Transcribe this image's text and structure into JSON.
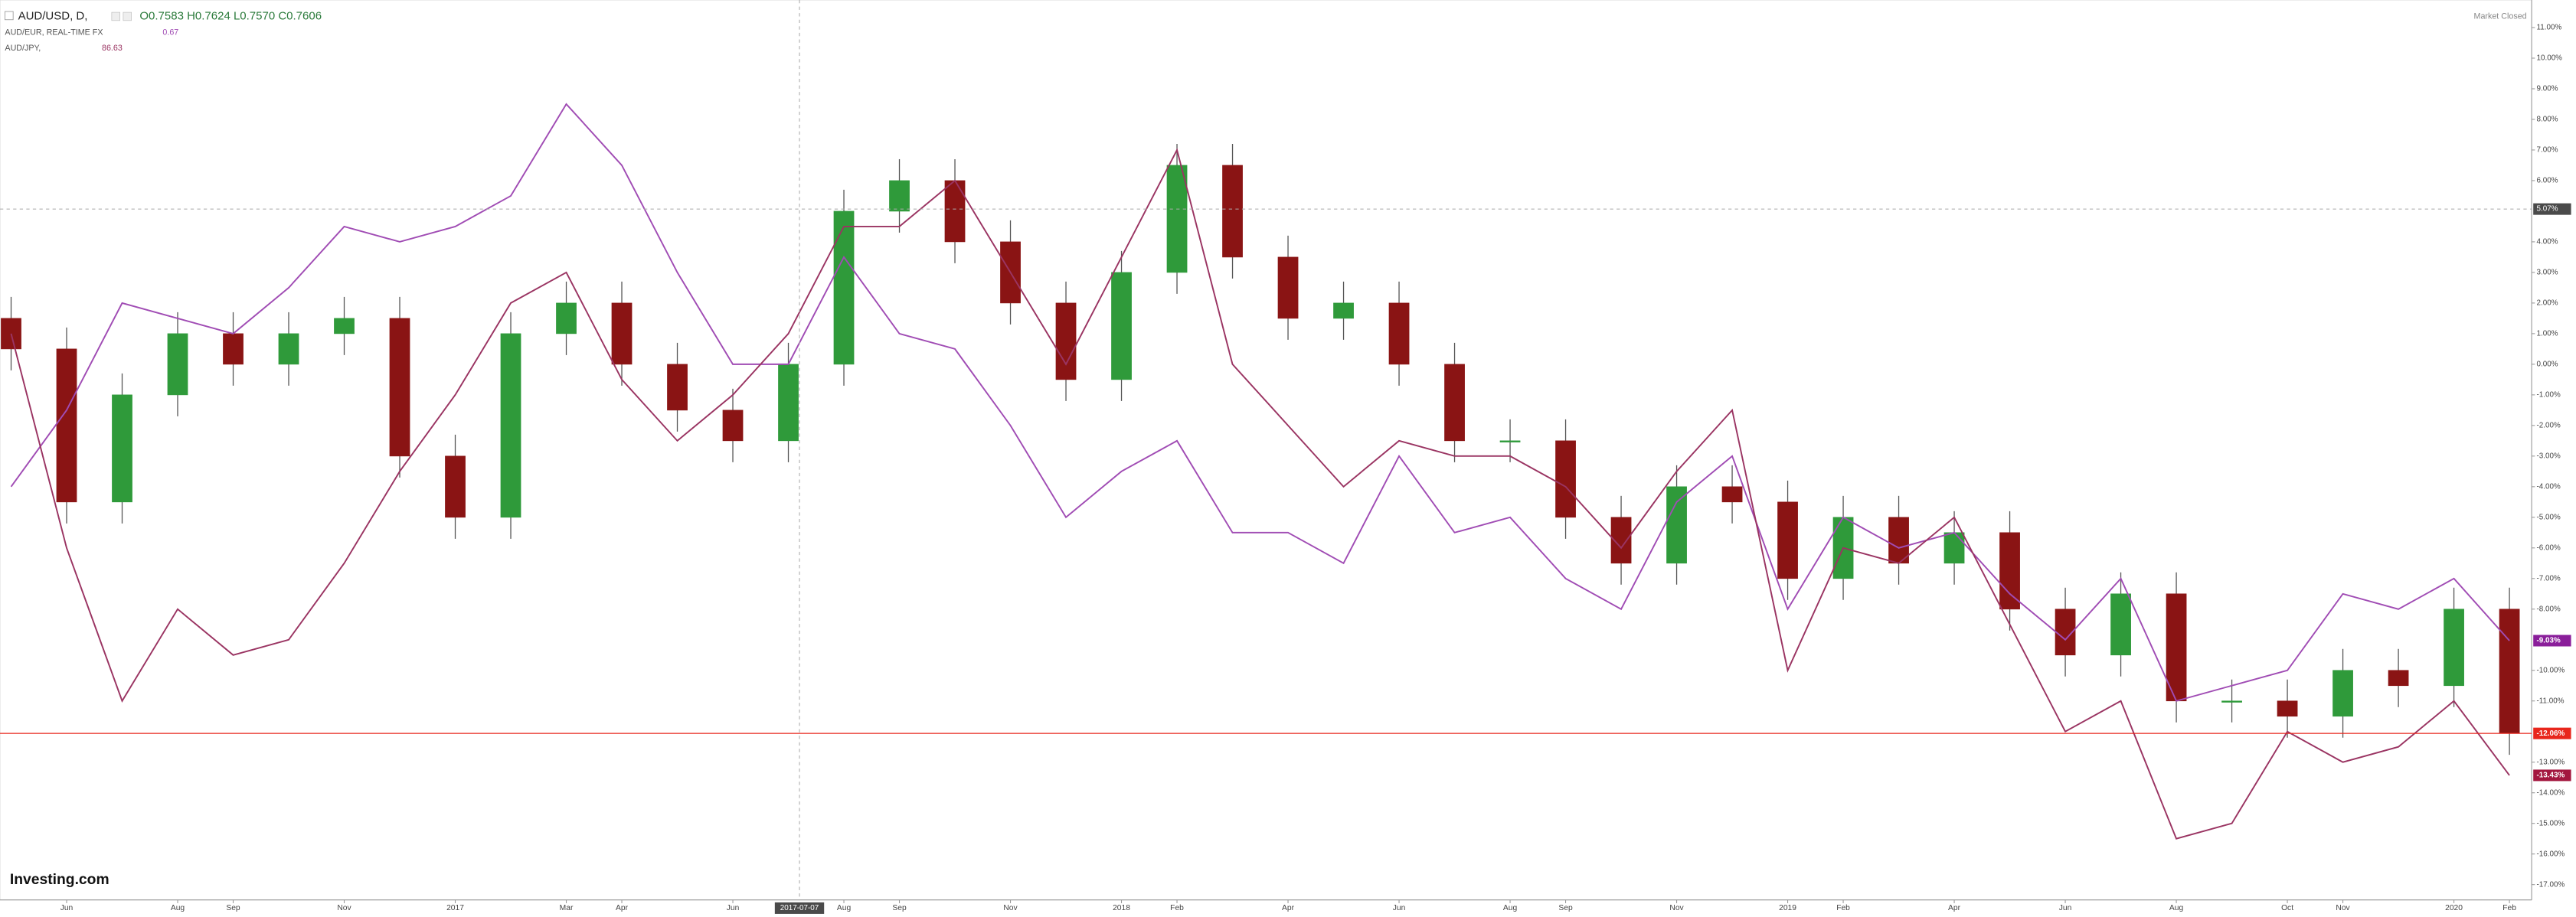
{
  "chart_data": {
    "type": "candlestick",
    "title": "AUD/USD, D,",
    "ohlc": "O0.7583 H0.7624 L0.7570 C0.7606",
    "status": "Market Closed",
    "brand": "Investing.com",
    "up_color": "#2f9a3a",
    "down_color": "#8a1414",
    "x": [
      0,
      1,
      2,
      3,
      4,
      5,
      6,
      7,
      8,
      9,
      10,
      11,
      12,
      13,
      14,
      15,
      16,
      17,
      18,
      19,
      20,
      21,
      22,
      23,
      24,
      25,
      26,
      27,
      28,
      29,
      30,
      31,
      32,
      33,
      34,
      35,
      36,
      37,
      38,
      39,
      40,
      41,
      42,
      43,
      44,
      45
    ],
    "open": [
      1.5,
      0.5,
      -4.5,
      -1,
      1,
      0,
      1,
      1.5,
      -3,
      -5,
      1,
      2,
      0,
      -1.5,
      -2.5,
      0,
      5,
      6,
      4,
      2,
      -0.5,
      3,
      6.5,
      3.5,
      1.5,
      2,
      0,
      -2.5,
      -2.5,
      -5,
      -6.5,
      -4,
      -4.5,
      -7,
      -5,
      -6.5,
      -5.5,
      -8,
      -9.5,
      -7.5,
      -11,
      -11,
      -11.5,
      -10,
      -10.5,
      -8
    ],
    "high": [
      2.2,
      1.2,
      -0.3,
      1.7,
      1.7,
      1.7,
      2.2,
      2.2,
      -2.3,
      1.7,
      2.7,
      2.7,
      0.7,
      -0.8,
      0.7,
      5.7,
      6.7,
      6.7,
      4.7,
      2.7,
      3.7,
      7.2,
      7.2,
      4.2,
      2.7,
      2.7,
      0.7,
      -1.8,
      -1.8,
      -4.3,
      -3.3,
      -3.3,
      -3.8,
      -4.3,
      -4.3,
      -4.8,
      -4.8,
      -7.3,
      -6.8,
      -6.8,
      -10.3,
      -10.3,
      -9.3,
      -9.3,
      -7.3,
      -7.3
    ],
    "low": [
      -0.2,
      -5.2,
      -5.2,
      -1.7,
      -0.7,
      -0.7,
      0.3,
      -3.7,
      -5.7,
      -5.7,
      0.3,
      -0.7,
      -2.2,
      -3.2,
      -3.2,
      -0.7,
      4.3,
      3.3,
      1.3,
      -1.2,
      -1.2,
      2.3,
      2.8,
      0.8,
      0.8,
      -0.7,
      -3.2,
      -3.2,
      -5.7,
      -7.2,
      -7.2,
      -5.2,
      -7.7,
      -7.7,
      -7.2,
      -7.2,
      -8.7,
      -10.2,
      -10.2,
      -11.7,
      -11.7,
      -12.2,
      -12.2,
      -11.2,
      -11.2,
      -12.76
    ],
    "close": [
      0.5,
      -4.5,
      -1,
      1,
      0,
      1,
      1.5,
      -3,
      -5,
      1,
      2,
      0,
      -1.5,
      -2.5,
      0,
      5,
      6,
      4,
      2,
      -0.5,
      3,
      6.5,
      3.5,
      1.5,
      2,
      0,
      -2.5,
      -2.5,
      -5,
      -6.5,
      -4,
      -4.5,
      -7,
      -5,
      -6.5,
      -5.5,
      -8,
      -9.5,
      -7.5,
      -11,
      -11,
      -11.5,
      -10,
      -10.5,
      -8,
      -12.06
    ],
    "series": [
      {
        "name": "AUD/EUR, REAL-TIME FX",
        "last": "0.67",
        "color": "#a04cb4",
        "values": [
          -4,
          -1.5,
          2,
          1.5,
          1,
          2.5,
          4.5,
          4,
          4.5,
          5.5,
          8.5,
          6.5,
          3,
          0,
          0,
          3.5,
          1,
          0.5,
          -2,
          -5,
          -3.5,
          -2.5,
          -5.5,
          -5.5,
          -6.5,
          -3,
          -5.5,
          -5,
          -7,
          -8,
          -4.5,
          -3,
          -8,
          -5,
          -6,
          -5.5,
          -7.5,
          -9,
          -7,
          -11,
          -10.5,
          -10,
          -7.5,
          -8,
          -7,
          -9.03
        ]
      },
      {
        "name": "AUD/JPY,",
        "last": "86.63",
        "color": "#9a3462",
        "values": [
          1,
          -6,
          -11,
          -8,
          -9.5,
          -9,
          -6.5,
          -3.5,
          -1,
          2,
          3,
          -0.5,
          -2.5,
          -1,
          1,
          4.5,
          4.5,
          6,
          3,
          0,
          3.5,
          7,
          0,
          -2,
          -4,
          -2.5,
          -3,
          -3,
          -4,
          -6,
          -3.5,
          -1.5,
          -10,
          -6,
          -6.5,
          -5,
          -8.5,
          -12,
          -11,
          -15.5,
          -15,
          -12,
          -13,
          -12.5,
          -11,
          -13.43
        ]
      }
    ],
    "xlim": [
      -0.2,
      45.4
    ],
    "ylim": [
      -17.5,
      11.9
    ],
    "xticks": [
      {
        "value": 1,
        "label": "Jun"
      },
      {
        "value": 3,
        "label": "Aug"
      },
      {
        "value": 4,
        "label": "Sep"
      },
      {
        "value": 6,
        "label": "Nov"
      },
      {
        "value": 8,
        "label": "2017"
      },
      {
        "value": 10,
        "label": "Mar"
      },
      {
        "value": 11,
        "label": "Apr"
      },
      {
        "value": 13,
        "label": "Jun"
      },
      {
        "value": 15,
        "label": "Aug"
      },
      {
        "value": 16,
        "label": "Sep"
      },
      {
        "value": 18,
        "label": "Nov"
      },
      {
        "value": 20,
        "label": "2018"
      },
      {
        "value": 21,
        "label": "Feb"
      },
      {
        "value": 23,
        "label": "Apr"
      },
      {
        "value": 25,
        "label": "Jun"
      },
      {
        "value": 27,
        "label": "Aug"
      },
      {
        "value": 28,
        "label": "Sep"
      },
      {
        "value": 30,
        "label": "Nov"
      },
      {
        "value": 32,
        "label": "2019"
      },
      {
        "value": 33,
        "label": "Feb"
      },
      {
        "value": 35,
        "label": "Apr"
      },
      {
        "value": 37,
        "label": "Jun"
      },
      {
        "value": 39,
        "label": "Aug"
      },
      {
        "value": 41,
        "label": "Oct"
      },
      {
        "value": 42,
        "label": "Nov"
      },
      {
        "value": 44,
        "label": "2020"
      },
      {
        "value": 45,
        "label": "Feb"
      }
    ],
    "yticks": [
      {
        "value": 11,
        "label": "11.00%"
      },
      {
        "value": 10,
        "label": "10.00%"
      },
      {
        "value": 9,
        "label": "9.00%"
      },
      {
        "value": 8,
        "label": "8.00%"
      },
      {
        "value": 7,
        "label": "7.00%"
      },
      {
        "value": 6,
        "label": "6.00%"
      },
      {
        "value": 4,
        "label": "4.00%"
      },
      {
        "value": 3,
        "label": "3.00%"
      },
      {
        "value": 2,
        "label": "2.00%"
      },
      {
        "value": 1,
        "label": "1.00%"
      },
      {
        "value": 0,
        "label": "0.00%"
      },
      {
        "value": -1,
        "label": "-1.00%"
      },
      {
        "value": -2,
        "label": "-2.00%"
      },
      {
        "value": -3,
        "label": "-3.00%"
      },
      {
        "value": -4,
        "label": "-4.00%"
      },
      {
        "value": -5,
        "label": "-5.00%"
      },
      {
        "value": -6,
        "label": "-6.00%"
      },
      {
        "value": -7,
        "label": "-7.00%"
      },
      {
        "value": -8,
        "label": "-8.00%"
      },
      {
        "value": -10,
        "label": "-10.00%"
      },
      {
        "value": -11,
        "label": "-11.00%"
      },
      {
        "value": -13,
        "label": "-13.00%"
      },
      {
        "value": -14,
        "label": "-14.00%"
      },
      {
        "value": -15,
        "label": "-15.00%"
      },
      {
        "value": -16,
        "label": "-16.00%"
      },
      {
        "value": -17,
        "label": "-17.00%"
      }
    ],
    "crosshair": {
      "x": {
        "value": 14.2,
        "label": "2017-07-07"
      },
      "y": {
        "value": 5.07,
        "label": "5.07%"
      }
    },
    "price_labels": [
      {
        "value": -9.03,
        "label": "-9.03%",
        "color": "#8a1e9a",
        "line": false
      },
      {
        "value": -12.06,
        "label": "-12.06%",
        "color": "#e8261c",
        "line": true
      },
      {
        "value": -13.43,
        "label": "-13.43%",
        "color": "#a3173f",
        "line": false
      }
    ]
  }
}
